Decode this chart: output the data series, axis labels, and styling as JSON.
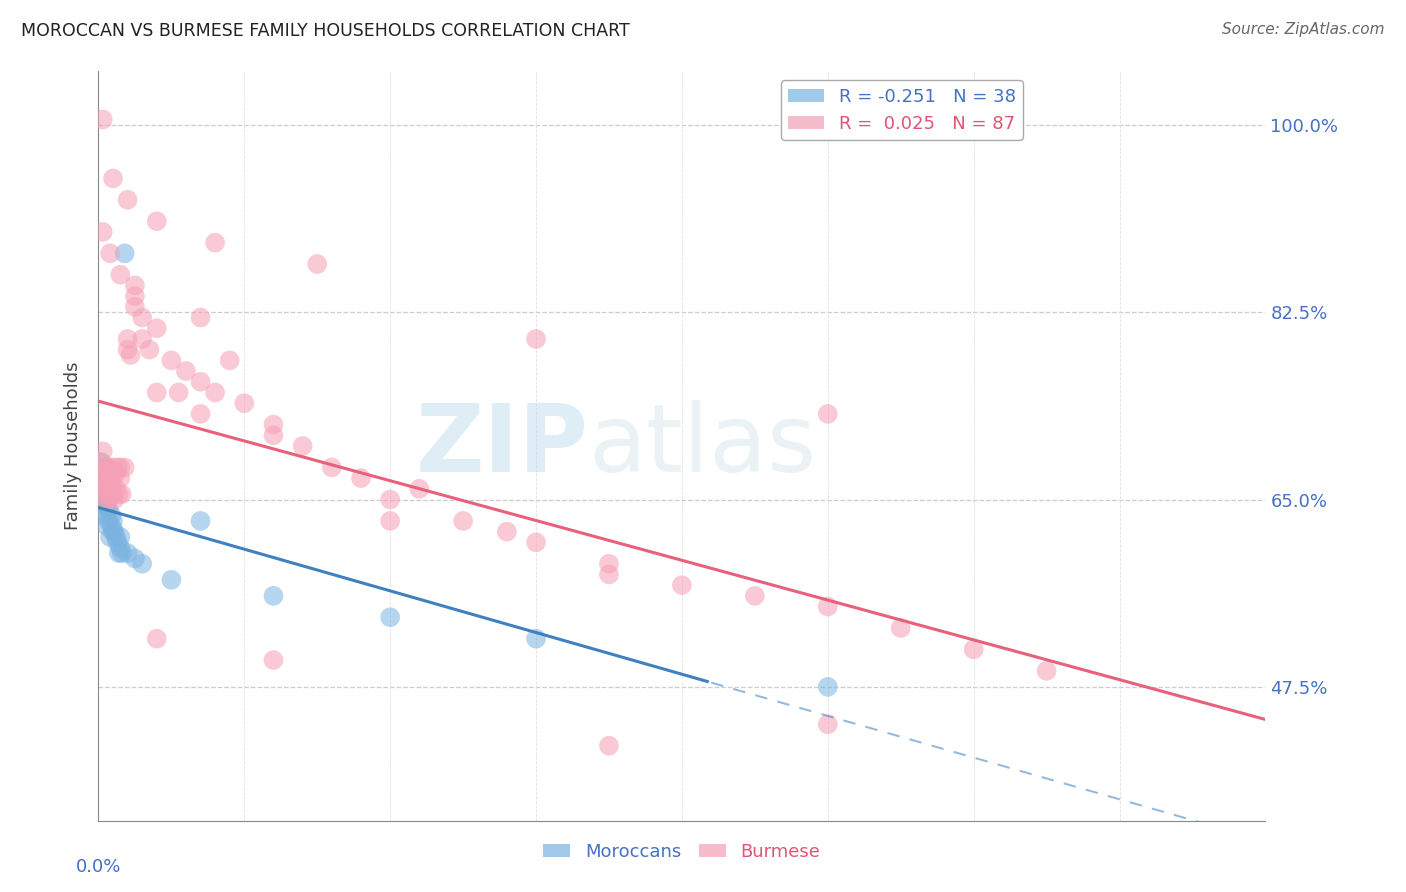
{
  "title": "MOROCCAN VS BURMESE FAMILY HOUSEHOLDS CORRELATION CHART",
  "source": "Source: ZipAtlas.com",
  "ylabel": "Family Households",
  "ytick_labels": [
    "100.0%",
    "82.5%",
    "65.0%",
    "47.5%"
  ],
  "ytick_values": [
    1.0,
    0.825,
    0.65,
    0.475
  ],
  "xmin": 0.0,
  "xmax": 0.8,
  "ymin": 0.35,
  "ymax": 1.05,
  "legend_moroccan_r": "R = -0.251",
  "legend_moroccan_n": "N = 38",
  "legend_burmese_r": "R =  0.025",
  "legend_burmese_n": "N = 87",
  "moroccan_color": "#7ab3e0",
  "burmese_color": "#f5a0b5",
  "moroccan_line_color": "#4080c0",
  "burmese_line_color": "#e8607a",
  "moroccan_line_solid_end": 0.42,
  "watermark_zip": "ZIP",
  "watermark_atlas": "atlas",
  "moroccan_x": [
    0.001,
    0.002,
    0.002,
    0.003,
    0.003,
    0.003,
    0.004,
    0.004,
    0.005,
    0.005,
    0.005,
    0.006,
    0.006,
    0.007,
    0.007,
    0.008,
    0.008,
    0.009,
    0.009,
    0.01,
    0.01,
    0.011,
    0.012,
    0.013,
    0.014,
    0.015,
    0.015,
    0.016,
    0.018,
    0.02,
    0.025,
    0.03,
    0.05,
    0.07,
    0.12,
    0.2,
    0.3,
    0.5
  ],
  "moroccan_y": [
    0.67,
    0.685,
    0.66,
    0.68,
    0.665,
    0.655,
    0.64,
    0.67,
    0.635,
    0.645,
    0.66,
    0.625,
    0.645,
    0.63,
    0.64,
    0.655,
    0.615,
    0.625,
    0.635,
    0.62,
    0.63,
    0.62,
    0.615,
    0.61,
    0.6,
    0.605,
    0.615,
    0.6,
    0.88,
    0.6,
    0.595,
    0.59,
    0.575,
    0.63,
    0.56,
    0.54,
    0.52,
    0.475
  ],
  "burmese_x": [
    0.001,
    0.001,
    0.002,
    0.002,
    0.003,
    0.003,
    0.003,
    0.004,
    0.004,
    0.005,
    0.005,
    0.005,
    0.006,
    0.006,
    0.007,
    0.007,
    0.007,
    0.008,
    0.008,
    0.009,
    0.009,
    0.01,
    0.01,
    0.01,
    0.011,
    0.012,
    0.012,
    0.013,
    0.014,
    0.015,
    0.015,
    0.016,
    0.018,
    0.02,
    0.02,
    0.022,
    0.025,
    0.025,
    0.03,
    0.03,
    0.035,
    0.04,
    0.05,
    0.055,
    0.06,
    0.07,
    0.07,
    0.08,
    0.09,
    0.1,
    0.12,
    0.14,
    0.16,
    0.18,
    0.2,
    0.22,
    0.25,
    0.28,
    0.3,
    0.35,
    0.4,
    0.45,
    0.5,
    0.55,
    0.6,
    0.65,
    0.003,
    0.008,
    0.015,
    0.025,
    0.04,
    0.07,
    0.12,
    0.2,
    0.35,
    0.5,
    0.003,
    0.01,
    0.02,
    0.04,
    0.08,
    0.15,
    0.3,
    0.5,
    0.04,
    0.12,
    0.35
  ],
  "burmese_y": [
    0.67,
    0.685,
    0.665,
    0.675,
    0.68,
    0.66,
    0.695,
    0.65,
    0.67,
    0.655,
    0.68,
    0.66,
    0.67,
    0.68,
    0.65,
    0.665,
    0.68,
    0.655,
    0.67,
    0.66,
    0.665,
    0.68,
    0.655,
    0.67,
    0.65,
    0.675,
    0.66,
    0.68,
    0.655,
    0.67,
    0.68,
    0.655,
    0.68,
    0.79,
    0.8,
    0.785,
    0.83,
    0.84,
    0.82,
    0.8,
    0.79,
    0.81,
    0.78,
    0.75,
    0.77,
    0.76,
    0.82,
    0.75,
    0.78,
    0.74,
    0.72,
    0.7,
    0.68,
    0.67,
    0.65,
    0.66,
    0.63,
    0.62,
    0.61,
    0.59,
    0.57,
    0.56,
    0.55,
    0.53,
    0.51,
    0.49,
    0.9,
    0.88,
    0.86,
    0.85,
    0.75,
    0.73,
    0.71,
    0.63,
    0.58,
    0.44,
    1.005,
    0.95,
    0.93,
    0.91,
    0.89,
    0.87,
    0.8,
    0.73,
    0.52,
    0.5,
    0.42
  ]
}
